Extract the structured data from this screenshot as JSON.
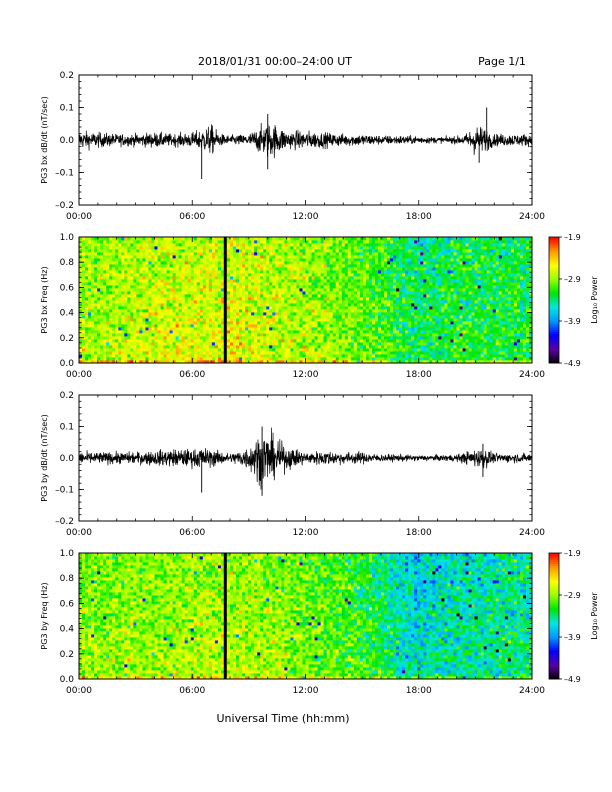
{
  "header": {
    "title": "2018/01/31   00:00–24:00 UT",
    "page": "Page 1/1"
  },
  "footer": {
    "xlabel": "Universal Time (hh:mm)"
  },
  "colors": {
    "colormap": [
      "#000000",
      "#5a00a0",
      "#0000ff",
      "#0096ff",
      "#00e6e6",
      "#00e600",
      "#96ff00",
      "#ffff00",
      "#ff9600",
      "#ff0000"
    ],
    "trace": "#000000",
    "marker_line": "#000000"
  },
  "chart_data": [
    {
      "type": "line",
      "ylabel": "PG3 bx dB/dt (nT/sec)",
      "xlim": [
        0,
        24
      ],
      "ylim": [
        -0.2,
        0.2
      ],
      "x_ticks": [
        "00:00",
        "06:00",
        "12:00",
        "18:00",
        "24:00"
      ],
      "y_ticks": [
        "–0.2",
        "–0.1",
        "0.0",
        "0.1",
        "0.2"
      ],
      "x_tick_values": [
        0,
        6,
        12,
        18,
        24
      ],
      "y_tick_values": [
        -0.2,
        -0.1,
        0.0,
        0.1,
        0.2
      ],
      "envelope_hours": [
        0,
        1,
        2,
        3,
        4,
        5,
        6,
        6.5,
        7,
        7.5,
        8,
        9,
        9.5,
        10,
        10.5,
        11,
        12,
        13,
        14,
        15,
        16,
        17,
        18,
        19,
        20,
        20.5,
        21,
        21.5,
        22,
        23,
        24
      ],
      "envelope_amplitude": [
        0.03,
        0.025,
        0.02,
        0.02,
        0.025,
        0.02,
        0.025,
        0.035,
        0.05,
        0.02,
        0.015,
        0.02,
        0.04,
        0.06,
        0.05,
        0.03,
        0.03,
        0.025,
        0.02,
        0.02,
        0.015,
        0.015,
        0.012,
        0.01,
        0.012,
        0.02,
        0.05,
        0.04,
        0.02,
        0.02,
        0.02
      ],
      "spikes": [
        {
          "x": 6.5,
          "y": -0.12
        },
        {
          "x": 10.0,
          "y": 0.08
        },
        {
          "x": 10.0,
          "y": -0.09
        },
        {
          "x": 21.6,
          "y": 0.1
        },
        {
          "x": 21.2,
          "y": -0.07
        }
      ]
    },
    {
      "type": "heatmap",
      "ylabel": "PG3 bx Freq (Hz)",
      "xlim": [
        0,
        24
      ],
      "ylim": [
        0.0,
        1.0
      ],
      "x_ticks": [
        "00:00",
        "06:00",
        "12:00",
        "18:00",
        "24:00"
      ],
      "y_ticks": [
        "0.0",
        "0.2",
        "0.4",
        "0.6",
        "0.8",
        "1.0"
      ],
      "x_tick_values": [
        0,
        6,
        12,
        18,
        24
      ],
      "y_tick_values": [
        0.0,
        0.2,
        0.4,
        0.6,
        0.8,
        1.0
      ],
      "marker_hour": 7.75,
      "power_range": [
        -4.9,
        -1.9
      ],
      "level_hours": [
        0,
        2,
        4,
        6,
        8,
        10,
        12,
        14,
        16,
        17,
        18,
        20,
        22,
        24
      ],
      "level_power": [
        -2.9,
        -2.8,
        -2.75,
        -2.7,
        -2.65,
        -2.75,
        -2.85,
        -2.95,
        -3.1,
        -3.3,
        -3.35,
        -3.25,
        -3.25,
        -3.25
      ],
      "colorbar": {
        "label": "Log₁₀ Power",
        "ticks": [
          "–1.9",
          "–2.9",
          "–3.9",
          "–4.9"
        ],
        "tick_values": [
          -1.9,
          -2.9,
          -3.9,
          -4.9
        ]
      }
    },
    {
      "type": "line",
      "ylabel": "PG3 by dB/dt (nT/sec)",
      "xlim": [
        0,
        24
      ],
      "ylim": [
        -0.2,
        0.2
      ],
      "x_ticks": [
        "00:00",
        "06:00",
        "12:00",
        "18:00",
        "24:00"
      ],
      "y_ticks": [
        "–0.2",
        "–0.1",
        "0.0",
        "0.1",
        "0.2"
      ],
      "x_tick_values": [
        0,
        6,
        12,
        18,
        24
      ],
      "y_tick_values": [
        -0.2,
        -0.1,
        0.0,
        0.1,
        0.2
      ],
      "envelope_hours": [
        0,
        1,
        2,
        3,
        4,
        5,
        6,
        6.5,
        7,
        8,
        9,
        9.5,
        10,
        10.5,
        11,
        12,
        13,
        14,
        15,
        16,
        17,
        18,
        19,
        20,
        21,
        21.5,
        22,
        23,
        24
      ],
      "envelope_amplitude": [
        0.02,
        0.02,
        0.02,
        0.02,
        0.025,
        0.03,
        0.03,
        0.035,
        0.03,
        0.015,
        0.04,
        0.08,
        0.09,
        0.06,
        0.04,
        0.02,
        0.025,
        0.02,
        0.02,
        0.012,
        0.012,
        0.01,
        0.01,
        0.012,
        0.03,
        0.035,
        0.015,
        0.015,
        0.015
      ],
      "spikes": [
        {
          "x": 6.5,
          "y": -0.11
        },
        {
          "x": 9.7,
          "y": 0.1
        },
        {
          "x": 9.7,
          "y": -0.12
        },
        {
          "x": 21.4,
          "y": 0.045
        },
        {
          "x": 21.4,
          "y": -0.06
        }
      ]
    },
    {
      "type": "heatmap",
      "ylabel": "PG3 by Freq (Hz)",
      "xlim": [
        0,
        24
      ],
      "ylim": [
        0.0,
        1.0
      ],
      "x_ticks": [
        "00:00",
        "06:00",
        "12:00",
        "18:00",
        "24:00"
      ],
      "y_ticks": [
        "0.0",
        "0.2",
        "0.4",
        "0.6",
        "0.8",
        "1.0"
      ],
      "x_tick_values": [
        0,
        6,
        12,
        18,
        24
      ],
      "y_tick_values": [
        0.0,
        0.2,
        0.4,
        0.6,
        0.8,
        1.0
      ],
      "marker_hour": 7.75,
      "power_range": [
        -4.9,
        -1.9
      ],
      "level_hours": [
        0,
        2,
        4,
        6,
        8,
        10,
        12,
        14,
        16,
        17,
        18,
        20,
        22,
        24
      ],
      "level_power": [
        -2.95,
        -2.9,
        -2.9,
        -2.85,
        -2.85,
        -2.85,
        -3.0,
        -3.1,
        -3.3,
        -3.5,
        -3.6,
        -3.5,
        -3.45,
        -3.4
      ],
      "colorbar": {
        "label": "Log₁₀ Power",
        "ticks": [
          "–1.9",
          "–2.9",
          "–3.9",
          "–4.9"
        ],
        "tick_values": [
          -1.9,
          -2.9,
          -3.9,
          -4.9
        ]
      }
    }
  ]
}
